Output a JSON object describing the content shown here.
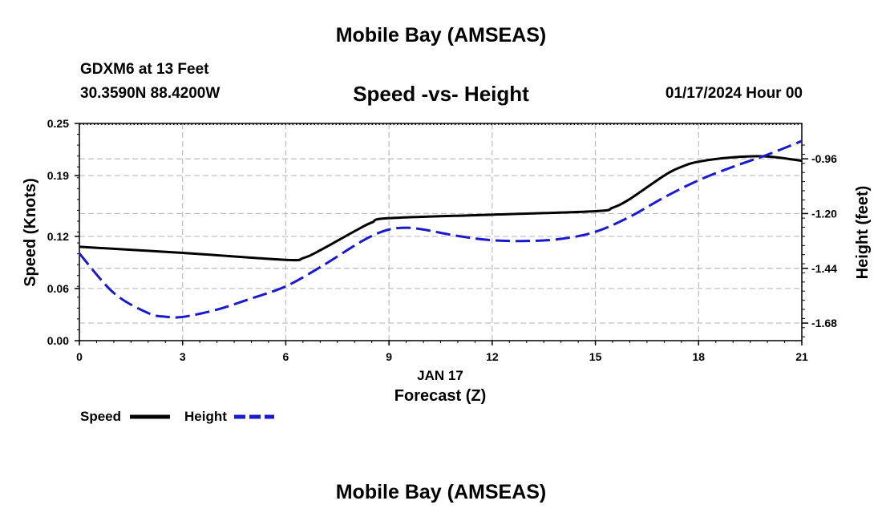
{
  "header": {
    "title": "Mobile Bay (AMSEAS)",
    "station": "GDXM6 at 13 Feet",
    "coordinates": "30.3590N  88.4200W",
    "chart_title": "Speed -vs- Height",
    "datetime": "01/17/2024 Hour 00"
  },
  "footer": {
    "title": "Mobile Bay (AMSEAS)"
  },
  "colors": {
    "speed": "#000000",
    "height": "#1a1acc",
    "grid": "#bbbbbb"
  },
  "chart_data": {
    "type": "line",
    "title": "Speed -vs- Height",
    "xlabel": "Forecast (Z)",
    "xsublabel": "JAN 17",
    "ylabel": "Speed (Knots)",
    "y2label": "Height (feet)",
    "xlim": [
      0,
      21
    ],
    "ylim": [
      0,
      0.25
    ],
    "y2lim": [
      -1.757,
      -0.805
    ],
    "x_ticks": [
      "0",
      "3",
      "6",
      "9",
      "12",
      "15",
      "18",
      "21"
    ],
    "y_ticks": [
      "0.00",
      "0.06",
      "0.12",
      "0.19",
      "0.25"
    ],
    "y2_ticks": [
      "-0.96",
      "-1.20",
      "-1.44",
      "-1.68"
    ],
    "series": [
      {
        "name": "Speed",
        "axis": "left",
        "style": "solid",
        "x": [
          0,
          3,
          6,
          6.5,
          7,
          8,
          8.5,
          9,
          12,
          15,
          15.5,
          16,
          17,
          17.5,
          18,
          19,
          20,
          21
        ],
        "values": [
          0.108,
          0.101,
          0.093,
          0.095,
          0.104,
          0.126,
          0.136,
          0.141,
          0.145,
          0.149,
          0.153,
          0.163,
          0.19,
          0.2,
          0.206,
          0.211,
          0.212,
          0.207
        ]
      },
      {
        "name": "Height",
        "axis": "right",
        "style": "dashed",
        "x": [
          0,
          1,
          2,
          2.5,
          3,
          4,
          5,
          6,
          7,
          8,
          8.5,
          9,
          9.5,
          10,
          11,
          12,
          13,
          14,
          15,
          16,
          17,
          18,
          19,
          20,
          21
        ],
        "values": [
          -1.375,
          -1.548,
          -1.636,
          -1.652,
          -1.653,
          -1.621,
          -1.572,
          -1.519,
          -1.435,
          -1.34,
          -1.298,
          -1.27,
          -1.262,
          -1.27,
          -1.298,
          -1.317,
          -1.32,
          -1.311,
          -1.28,
          -1.214,
          -1.129,
          -1.054,
          -0.995,
          -0.942,
          -0.882
        ]
      }
    ],
    "legend": [
      {
        "label": "Speed",
        "style": "solid"
      },
      {
        "label": "Height",
        "style": "dashed"
      }
    ]
  }
}
